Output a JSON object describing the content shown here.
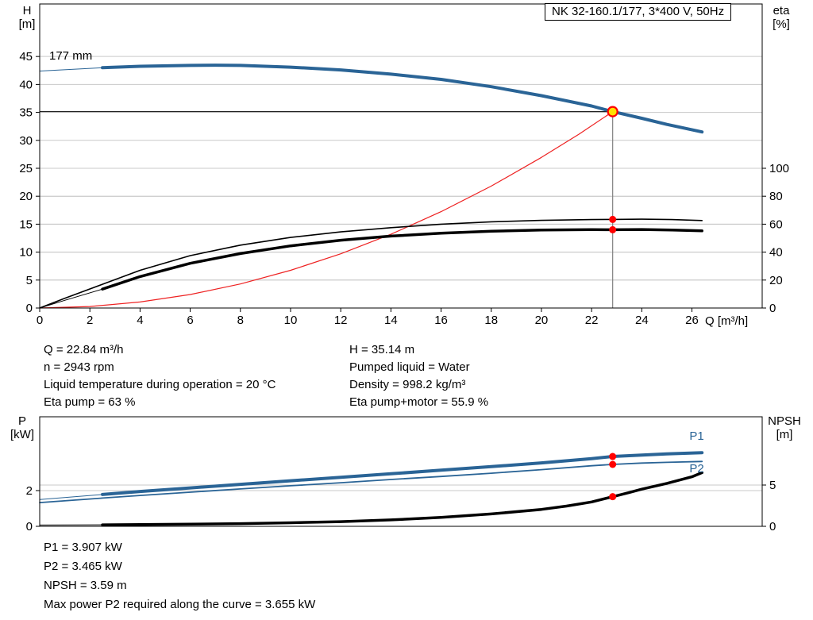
{
  "title_box": "NK 32-160.1/177, 3*400 V, 50Hz",
  "impeller_label": "177 mm",
  "colors": {
    "curve_main": "#2a6496",
    "system_curve": "#ee2222",
    "eta_curve": "#000000",
    "dot": "#ff0000",
    "op_fill": "#ffe000",
    "grid": "#c9c9c9",
    "ref_v": "#808080",
    "frame": "#000000"
  },
  "info_left": [
    "Q = 22.84 m³/h",
    "n = 2943 rpm",
    "Liquid temperature during operation = 20 °C",
    "Eta pump = 63 %"
  ],
  "info_right": [
    "H = 35.14 m",
    "Pumped liquid = Water",
    "Density = 998.2 kg/m³",
    "Eta pump+motor = 55.9 %"
  ],
  "footer_lines": [
    "P1 = 3.907 kW",
    "P2 = 3.465 kW",
    "NPSH = 3.59 m",
    "Max power P2 required along the curve = 3.655 kW"
  ],
  "chart_data": [
    {
      "type": "line",
      "title": "NK 32-160.1/177, 3*400 V, 50Hz",
      "x_axis": {
        "label": "Q [m³/h]",
        "min": 0,
        "max": 28.8,
        "ticks": [
          0,
          2,
          4,
          6,
          8,
          10,
          12,
          14,
          16,
          18,
          20,
          22,
          24,
          26
        ]
      },
      "y_left": {
        "label": "H [m]",
        "label_lines": [
          "H",
          "[m]"
        ],
        "min": 0,
        "max": 54.4,
        "ticks": [
          0,
          5,
          10,
          15,
          20,
          25,
          30,
          35,
          40,
          45
        ]
      },
      "y_right": {
        "label": "eta [%]",
        "label_lines": [
          "eta",
          "[%]"
        ],
        "min": 0,
        "max": 217.6,
        "ticks": [
          0,
          20,
          40,
          60,
          80,
          100
        ]
      },
      "op_lines": {
        "q": 22.84,
        "h": 35.14,
        "h_from": 0
      },
      "series": [
        {
          "name": "system-curve",
          "axis": "left",
          "color": "system_curve",
          "width": 1.2,
          "points": [
            [
              0,
              0
            ],
            [
              2,
              0.27
            ],
            [
              4,
              1.08
            ],
            [
              6,
              2.42
            ],
            [
              8,
              4.31
            ],
            [
              10,
              6.74
            ],
            [
              12,
              9.7
            ],
            [
              14,
              13.2
            ],
            [
              16,
              17.24
            ],
            [
              18,
              21.82
            ],
            [
              20,
              26.94
            ],
            [
              21.5,
              31.1
            ],
            [
              22.84,
              35.14
            ]
          ]
        },
        {
          "name": "eta-pump-curve",
          "axis": "right",
          "color": "eta_curve",
          "width": 1.6,
          "points": [
            [
              0,
              0
            ],
            [
              1,
              7
            ],
            [
              2.5,
              17
            ],
            [
              4,
              27
            ],
            [
              6,
              37.5
            ],
            [
              8,
              45
            ],
            [
              10,
              50.5
            ],
            [
              12,
              54.5
            ],
            [
              14,
              57.5
            ],
            [
              16,
              60
            ],
            [
              18,
              61.7
            ],
            [
              20,
              62.7
            ],
            [
              22,
              63.3
            ],
            [
              22.84,
              63.4
            ],
            [
              24,
              63.6
            ],
            [
              25.2,
              63.3
            ],
            [
              26.4,
              62.6
            ]
          ]
        },
        {
          "name": "eta-pump-motor-curve",
          "axis": "right",
          "color": "eta_curve",
          "width": 3.5,
          "thin_until": 2.5,
          "points": [
            [
              0,
              0
            ],
            [
              1,
              5.5
            ],
            [
              2.5,
              13.5
            ],
            [
              4,
              22.5
            ],
            [
              6,
              32
            ],
            [
              8,
              39
            ],
            [
              10,
              44.5
            ],
            [
              12,
              48.5
            ],
            [
              14,
              51.5
            ],
            [
              16,
              53.5
            ],
            [
              18,
              55
            ],
            [
              20,
              55.8
            ],
            [
              22,
              56.1
            ],
            [
              22.84,
              56.0
            ],
            [
              24,
              56.2
            ],
            [
              25.2,
              55.8
            ],
            [
              26.4,
              55.2
            ]
          ]
        },
        {
          "name": "head-curve",
          "axis": "left",
          "color": "curve_main",
          "width": 4,
          "thin_until": 2.5,
          "points": [
            [
              0,
              42.4
            ],
            [
              2.5,
              43.0
            ],
            [
              4,
              43.25
            ],
            [
              6,
              43.4
            ],
            [
              7,
              43.45
            ],
            [
              8,
              43.4
            ],
            [
              10,
              43.1
            ],
            [
              12,
              42.6
            ],
            [
              14,
              41.85
            ],
            [
              16,
              40.9
            ],
            [
              18,
              39.6
            ],
            [
              20,
              38.0
            ],
            [
              22,
              36.15
            ],
            [
              22.84,
              35.14
            ],
            [
              24,
              33.95
            ],
            [
              25,
              32.85
            ],
            [
              26.4,
              31.5
            ]
          ]
        }
      ],
      "markers": [
        {
          "type": "dot",
          "axis": "right",
          "q": 22.84,
          "v": 63.4
        },
        {
          "type": "dot",
          "axis": "right",
          "q": 22.84,
          "v": 56.0
        },
        {
          "type": "op",
          "axis": "left",
          "q": 22.84,
          "v": 35.14
        }
      ],
      "series_labels": []
    },
    {
      "type": "line",
      "title": "",
      "x_axis": {
        "label": "",
        "min": 0,
        "max": 28.8,
        "ticks": []
      },
      "y_left": {
        "label": "P [kW]",
        "label_lines": [
          "P",
          "[kW]"
        ],
        "min": 0,
        "max": 6.13,
        "ticks": [
          0,
          2
        ]
      },
      "y_right": {
        "label": "NPSH [m]",
        "label_lines": [
          "NPSH",
          "[m]"
        ],
        "min": 0,
        "max": 13.27,
        "ticks": [
          0,
          5
        ]
      },
      "series": [
        {
          "name": "npsh-curve",
          "axis": "right",
          "color": "eta_curve",
          "width": 3.5,
          "thin_until": 2.5,
          "points": [
            [
              0,
              0.15
            ],
            [
              2.5,
              0.18
            ],
            [
              4,
              0.21
            ],
            [
              6,
              0.26
            ],
            [
              8,
              0.33
            ],
            [
              10,
              0.43
            ],
            [
              12,
              0.57
            ],
            [
              14,
              0.78
            ],
            [
              16,
              1.08
            ],
            [
              18,
              1.5
            ],
            [
              20,
              2.05
            ],
            [
              21,
              2.45
            ],
            [
              22,
              2.95
            ],
            [
              22.84,
              3.59
            ],
            [
              23.5,
              4.1
            ],
            [
              24,
              4.5
            ],
            [
              25,
              5.2
            ],
            [
              26,
              6.0
            ],
            [
              26.4,
              6.5
            ]
          ]
        },
        {
          "name": "p2-curve",
          "axis": "left",
          "color": "curve_main",
          "width": 1.8,
          "points": [
            [
              0,
              1.33
            ],
            [
              2.5,
              1.58
            ],
            [
              4,
              1.73
            ],
            [
              6,
              1.91
            ],
            [
              8,
              2.09
            ],
            [
              10,
              2.27
            ],
            [
              12,
              2.44
            ],
            [
              14,
              2.62
            ],
            [
              16,
              2.79
            ],
            [
              18,
              2.97
            ],
            [
              20,
              3.17
            ],
            [
              22,
              3.39
            ],
            [
              22.84,
              3.465
            ],
            [
              24,
              3.54
            ],
            [
              25,
              3.58
            ],
            [
              26.4,
              3.63
            ]
          ]
        },
        {
          "name": "p1-curve",
          "axis": "left",
          "color": "curve_main",
          "width": 4,
          "thin_until": 2.5,
          "points": [
            [
              0,
              1.5
            ],
            [
              2.5,
              1.78
            ],
            [
              4,
              1.95
            ],
            [
              6,
              2.15
            ],
            [
              8,
              2.35
            ],
            [
              10,
              2.55
            ],
            [
              12,
              2.74
            ],
            [
              14,
              2.94
            ],
            [
              16,
              3.14
            ],
            [
              18,
              3.34
            ],
            [
              20,
              3.55
            ],
            [
              22,
              3.79
            ],
            [
              22.84,
              3.907
            ],
            [
              24,
              3.99
            ],
            [
              25,
              4.05
            ],
            [
              26.4,
              4.12
            ]
          ]
        }
      ],
      "markers": [
        {
          "type": "dot",
          "axis": "left",
          "q": 22.84,
          "v": 3.907
        },
        {
          "type": "dot",
          "axis": "left",
          "q": 22.84,
          "v": 3.465
        },
        {
          "type": "dot",
          "axis": "right",
          "q": 22.84,
          "v": 3.59
        }
      ],
      "series_labels": [
        {
          "text": "P1",
          "axis": "left",
          "q": 25.9,
          "v": 4.85,
          "color": "curve_main"
        },
        {
          "text": "P2",
          "axis": "left",
          "q": 25.9,
          "v": 3.02,
          "color": "curve_main"
        }
      ]
    }
  ]
}
